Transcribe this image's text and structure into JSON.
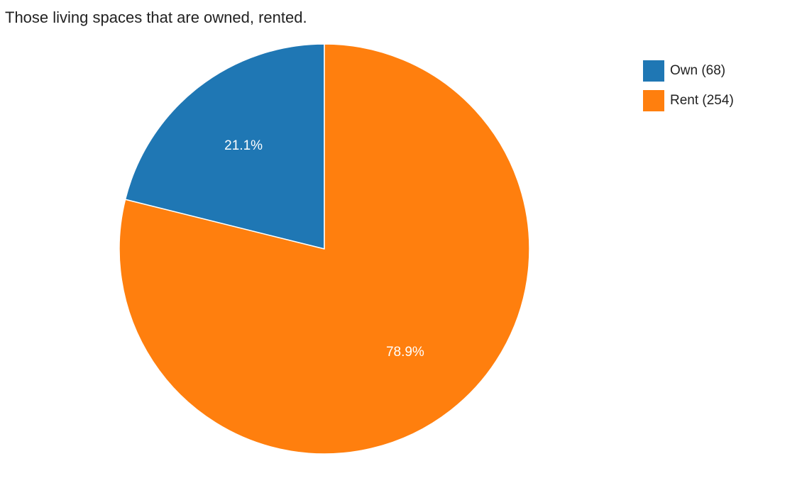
{
  "chart_data": {
    "type": "pie",
    "title": "Those living spaces that are owned, rented.",
    "slices": [
      {
        "name": "Own",
        "value": 68,
        "legend_label": "Own (68)",
        "percent_label": "21.1%",
        "color": "#1f77b4"
      },
      {
        "name": "Rent",
        "value": 254,
        "legend_label": "Rent (254)",
        "percent_label": "78.9%",
        "color": "#ff7f0e"
      }
    ],
    "start_angle": "12 o'clock",
    "direction": "counterclockwise",
    "legend_position": "top-right"
  }
}
